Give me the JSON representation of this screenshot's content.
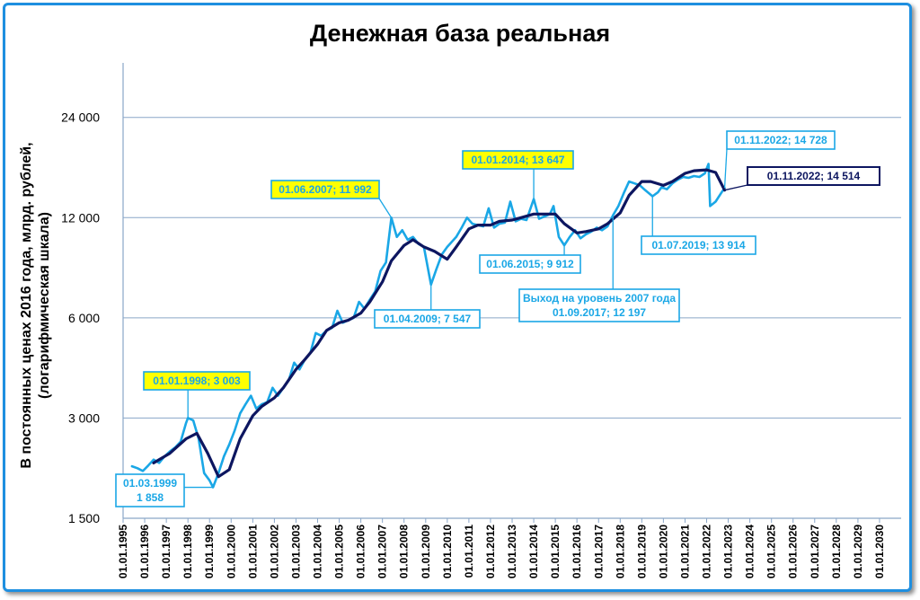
{
  "chart_data": {
    "type": "line",
    "title": "Денежная база реальная",
    "ylabel": "В постоянных ценах 2016 года, млрд. рублей,",
    "ylabel2": "(логарифмическая шкала)",
    "yscale": "log",
    "ylim": [
      1500,
      35000
    ],
    "yticks": [
      1500,
      3000,
      6000,
      12000,
      24000
    ],
    "ytick_labels": [
      "1 500",
      "3 000",
      "6 000",
      "12 000",
      "24 000"
    ],
    "xlim": [
      "1995-01-01",
      "2031-01-01"
    ],
    "xtick_labels": [
      "01.01.1995",
      "01.01.1996",
      "01.01.1997",
      "01.01.1998",
      "01.01.1999",
      "01.01.2000",
      "01.01.2001",
      "01.01.2002",
      "01.01.2003",
      "01.01.2004",
      "01.01.2005",
      "01.01.2006",
      "01.01.2007",
      "01.01.2008",
      "01.01.2009",
      "01.01.2010",
      "01.01.2011",
      "01.01.2012",
      "01.01.2013",
      "01.01.2014",
      "01.01.2015",
      "01.01.2016",
      "01.01.2017",
      "01.01.2018",
      "01.01.2019",
      "01.01.2020",
      "01.01.2021",
      "01.01.2022",
      "01.01.2023",
      "01.01.2024",
      "01.01.2025",
      "01.01.2026",
      "01.01.2027",
      "01.01.2028",
      "01.01.2029",
      "01.01.2030"
    ],
    "grid": "horizontal",
    "series": [
      {
        "color": "#1aa7e6",
        "points": [
          [
            "1995-06-01",
            2150
          ],
          [
            "1995-09-01",
            2120
          ],
          [
            "1995-12-01",
            2080
          ],
          [
            "1996-03-01",
            2160
          ],
          [
            "1996-06-01",
            2250
          ],
          [
            "1996-09-01",
            2200
          ],
          [
            "1996-12-01",
            2300
          ],
          [
            "1997-03-01",
            2380
          ],
          [
            "1997-06-01",
            2450
          ],
          [
            "1997-09-01",
            2550
          ],
          [
            "1997-12-01",
            2900
          ],
          [
            "1998-01-01",
            3003
          ],
          [
            "1998-04-01",
            2950
          ],
          [
            "1998-07-01",
            2600
          ],
          [
            "1998-10-01",
            2050
          ],
          [
            "1999-01-01",
            1950
          ],
          [
            "1999-03-01",
            1858
          ],
          [
            "1999-06-01",
            2050
          ],
          [
            "1999-09-01",
            2300
          ],
          [
            "1999-12-01",
            2500
          ],
          [
            "2000-03-01",
            2750
          ],
          [
            "2000-06-01",
            3100
          ],
          [
            "2000-09-01",
            3300
          ],
          [
            "2000-12-01",
            3500
          ],
          [
            "2001-03-01",
            3200
          ],
          [
            "2001-06-01",
            3300
          ],
          [
            "2001-09-01",
            3350
          ],
          [
            "2001-12-01",
            3700
          ],
          [
            "2002-03-01",
            3500
          ],
          [
            "2002-06-01",
            3700
          ],
          [
            "2002-09-01",
            3900
          ],
          [
            "2002-12-01",
            4400
          ],
          [
            "2003-03-01",
            4200
          ],
          [
            "2003-06-01",
            4500
          ],
          [
            "2003-09-01",
            4700
          ],
          [
            "2003-12-01",
            5400
          ],
          [
            "2004-03-01",
            5300
          ],
          [
            "2004-06-01",
            5500
          ],
          [
            "2004-09-01",
            5600
          ],
          [
            "2004-12-01",
            6300
          ],
          [
            "2005-03-01",
            5800
          ],
          [
            "2005-06-01",
            5900
          ],
          [
            "2005-09-01",
            6000
          ],
          [
            "2005-12-01",
            6700
          ],
          [
            "2006-03-01",
            6400
          ],
          [
            "2006-06-01",
            6800
          ],
          [
            "2006-09-01",
            7200
          ],
          [
            "2006-12-01",
            8300
          ],
          [
            "2007-03-01",
            8800
          ],
          [
            "2007-06-01",
            11992
          ],
          [
            "2007-09-01",
            10500
          ],
          [
            "2007-12-01",
            11000
          ],
          [
            "2008-03-01",
            10300
          ],
          [
            "2008-06-01",
            10500
          ],
          [
            "2008-09-01",
            10000
          ],
          [
            "2008-12-01",
            9800
          ],
          [
            "2009-04-01",
            7547
          ],
          [
            "2009-07-01",
            8400
          ],
          [
            "2009-10-01",
            9300
          ],
          [
            "2010-01-01",
            9800
          ],
          [
            "2010-06-01",
            10500
          ],
          [
            "2010-09-01",
            11200
          ],
          [
            "2010-12-01",
            12000
          ],
          [
            "2011-03-01",
            11500
          ],
          [
            "2011-06-01",
            11400
          ],
          [
            "2011-09-01",
            11300
          ],
          [
            "2011-12-01",
            12800
          ],
          [
            "2012-03-01",
            11200
          ],
          [
            "2012-06-01",
            11500
          ],
          [
            "2012-09-01",
            11600
          ],
          [
            "2012-12-01",
            13400
          ],
          [
            "2013-03-01",
            11700
          ],
          [
            "2013-06-01",
            11900
          ],
          [
            "2013-09-01",
            11800
          ],
          [
            "2014-01-01",
            13647
          ],
          [
            "2014-04-01",
            11900
          ],
          [
            "2014-07-01",
            12100
          ],
          [
            "2014-10-01",
            12300
          ],
          [
            "2014-12-01",
            13000
          ],
          [
            "2015-03-01",
            10500
          ],
          [
            "2015-06-01",
            9912
          ],
          [
            "2015-09-01",
            10500
          ],
          [
            "2015-12-01",
            11000
          ],
          [
            "2016-03-01",
            10400
          ],
          [
            "2016-06-01",
            10700
          ],
          [
            "2016-09-01",
            10900
          ],
          [
            "2016-12-01",
            11200
          ],
          [
            "2017-03-01",
            11000
          ],
          [
            "2017-06-01",
            11300
          ],
          [
            "2017-09-01",
            12197
          ],
          [
            "2017-12-01",
            13000
          ],
          [
            "2018-03-01",
            14200
          ],
          [
            "2018-06-01",
            15400
          ],
          [
            "2018-09-01",
            15200
          ],
          [
            "2018-12-01",
            15000
          ],
          [
            "2019-03-01",
            14500
          ],
          [
            "2019-07-01",
            13914
          ],
          [
            "2019-10-01",
            14300
          ],
          [
            "2019-12-01",
            14800
          ],
          [
            "2020-03-01",
            14600
          ],
          [
            "2020-06-01",
            15200
          ],
          [
            "2020-09-01",
            15600
          ],
          [
            "2020-12-01",
            15900
          ],
          [
            "2021-03-01",
            15800
          ],
          [
            "2021-06-01",
            16000
          ],
          [
            "2021-09-01",
            15900
          ],
          [
            "2021-12-01",
            16300
          ],
          [
            "2022-02-01",
            17400
          ],
          [
            "2022-03-01",
            13000
          ],
          [
            "2022-06-01",
            13400
          ],
          [
            "2022-09-01",
            14200
          ],
          [
            "2022-11-01",
            14728
          ]
        ]
      },
      {
        "color": "#0d1660",
        "points": [
          [
            "1996-06-01",
            2200
          ],
          [
            "1997-03-01",
            2350
          ],
          [
            "1997-12-01",
            2600
          ],
          [
            "1998-06-01",
            2700
          ],
          [
            "1998-12-01",
            2350
          ],
          [
            "1999-06-01",
            2000
          ],
          [
            "1999-12-01",
            2100
          ],
          [
            "2000-06-01",
            2600
          ],
          [
            "2001-01-01",
            3050
          ],
          [
            "2001-06-01",
            3250
          ],
          [
            "2002-01-01",
            3450
          ],
          [
            "2002-06-01",
            3700
          ],
          [
            "2003-01-01",
            4200
          ],
          [
            "2003-06-01",
            4500
          ],
          [
            "2004-01-01",
            5000
          ],
          [
            "2004-06-01",
            5500
          ],
          [
            "2005-01-01",
            5800
          ],
          [
            "2005-06-01",
            5900
          ],
          [
            "2006-01-01",
            6200
          ],
          [
            "2006-06-01",
            6700
          ],
          [
            "2007-01-01",
            7700
          ],
          [
            "2007-06-01",
            8900
          ],
          [
            "2008-01-01",
            9900
          ],
          [
            "2008-06-01",
            10300
          ],
          [
            "2008-12-01",
            9800
          ],
          [
            "2009-06-01",
            9500
          ],
          [
            "2010-01-01",
            9000
          ],
          [
            "2010-06-01",
            9800
          ],
          [
            "2011-01-01",
            11100
          ],
          [
            "2011-06-01",
            11400
          ],
          [
            "2012-01-01",
            11400
          ],
          [
            "2012-06-01",
            11700
          ],
          [
            "2013-01-01",
            11800
          ],
          [
            "2013-06-01",
            12000
          ],
          [
            "2014-01-01",
            12300
          ],
          [
            "2014-06-01",
            12300
          ],
          [
            "2015-01-01",
            12300
          ],
          [
            "2015-06-01",
            11500
          ],
          [
            "2016-01-01",
            10800
          ],
          [
            "2016-06-01",
            10900
          ],
          [
            "2017-01-01",
            11100
          ],
          [
            "2017-06-01",
            11500
          ],
          [
            "2018-01-01",
            12400
          ],
          [
            "2018-06-01",
            14000
          ],
          [
            "2019-01-01",
            15400
          ],
          [
            "2019-06-01",
            15400
          ],
          [
            "2020-01-01",
            15000
          ],
          [
            "2020-06-01",
            15400
          ],
          [
            "2021-01-01",
            16300
          ],
          [
            "2021-06-01",
            16600
          ],
          [
            "2022-01-01",
            16700
          ],
          [
            "2022-06-01",
            16400
          ],
          [
            "2022-11-01",
            14514
          ]
        ]
      }
    ],
    "annotations": [
      {
        "text": "01.01.1998;  3 003",
        "lines": [
          "01.01.1998;  3 003"
        ],
        "style": "yellow",
        "x": "1998-01-01",
        "y": 3003
      },
      {
        "text": "01.03.1999 1 858",
        "lines": [
          "01.03.1999",
          "1 858"
        ],
        "style": "light",
        "x": "1999-03-01",
        "y": 1858
      },
      {
        "text": "01.06.2007;  11 992",
        "lines": [
          "01.06.2007;  11 992"
        ],
        "style": "yellow",
        "x": "2007-06-01",
        "y": 11992
      },
      {
        "text": "01.04.2009;  7 547",
        "lines": [
          "01.04.2009;  7 547"
        ],
        "style": "light",
        "x": "2009-04-01",
        "y": 7547
      },
      {
        "text": "01.01.2014;  13 647",
        "lines": [
          "01.01.2014;  13 647"
        ],
        "style": "yellow",
        "x": "2014-01-01",
        "y": 13647
      },
      {
        "text": "01.06.2015;  9 912",
        "lines": [
          "01.06.2015;  9 912"
        ],
        "style": "light",
        "x": "2015-06-01",
        "y": 9912
      },
      {
        "text": "Выход на уровень 2007 года 01.09.2017;  12 197",
        "lines": [
          "Выход на уровень 2007 года",
          "01.09.2017;  12 197"
        ],
        "style": "light",
        "x": "2017-09-01",
        "y": 12197
      },
      {
        "text": "01.07.2019;  13 914",
        "lines": [
          "01.07.2019;  13 914"
        ],
        "style": "light",
        "x": "2019-07-01",
        "y": 13914
      },
      {
        "text": "01.11.2022;  14 728",
        "lines": [
          "01.11.2022;  14 728"
        ],
        "style": "light",
        "x": "2022-11-01",
        "y": 14728
      },
      {
        "text": "01.11.2022;  14 514",
        "lines": [
          "01.11.2022;  14 514"
        ],
        "style": "dark",
        "x": "2022-11-01",
        "y": 14514
      }
    ]
  }
}
